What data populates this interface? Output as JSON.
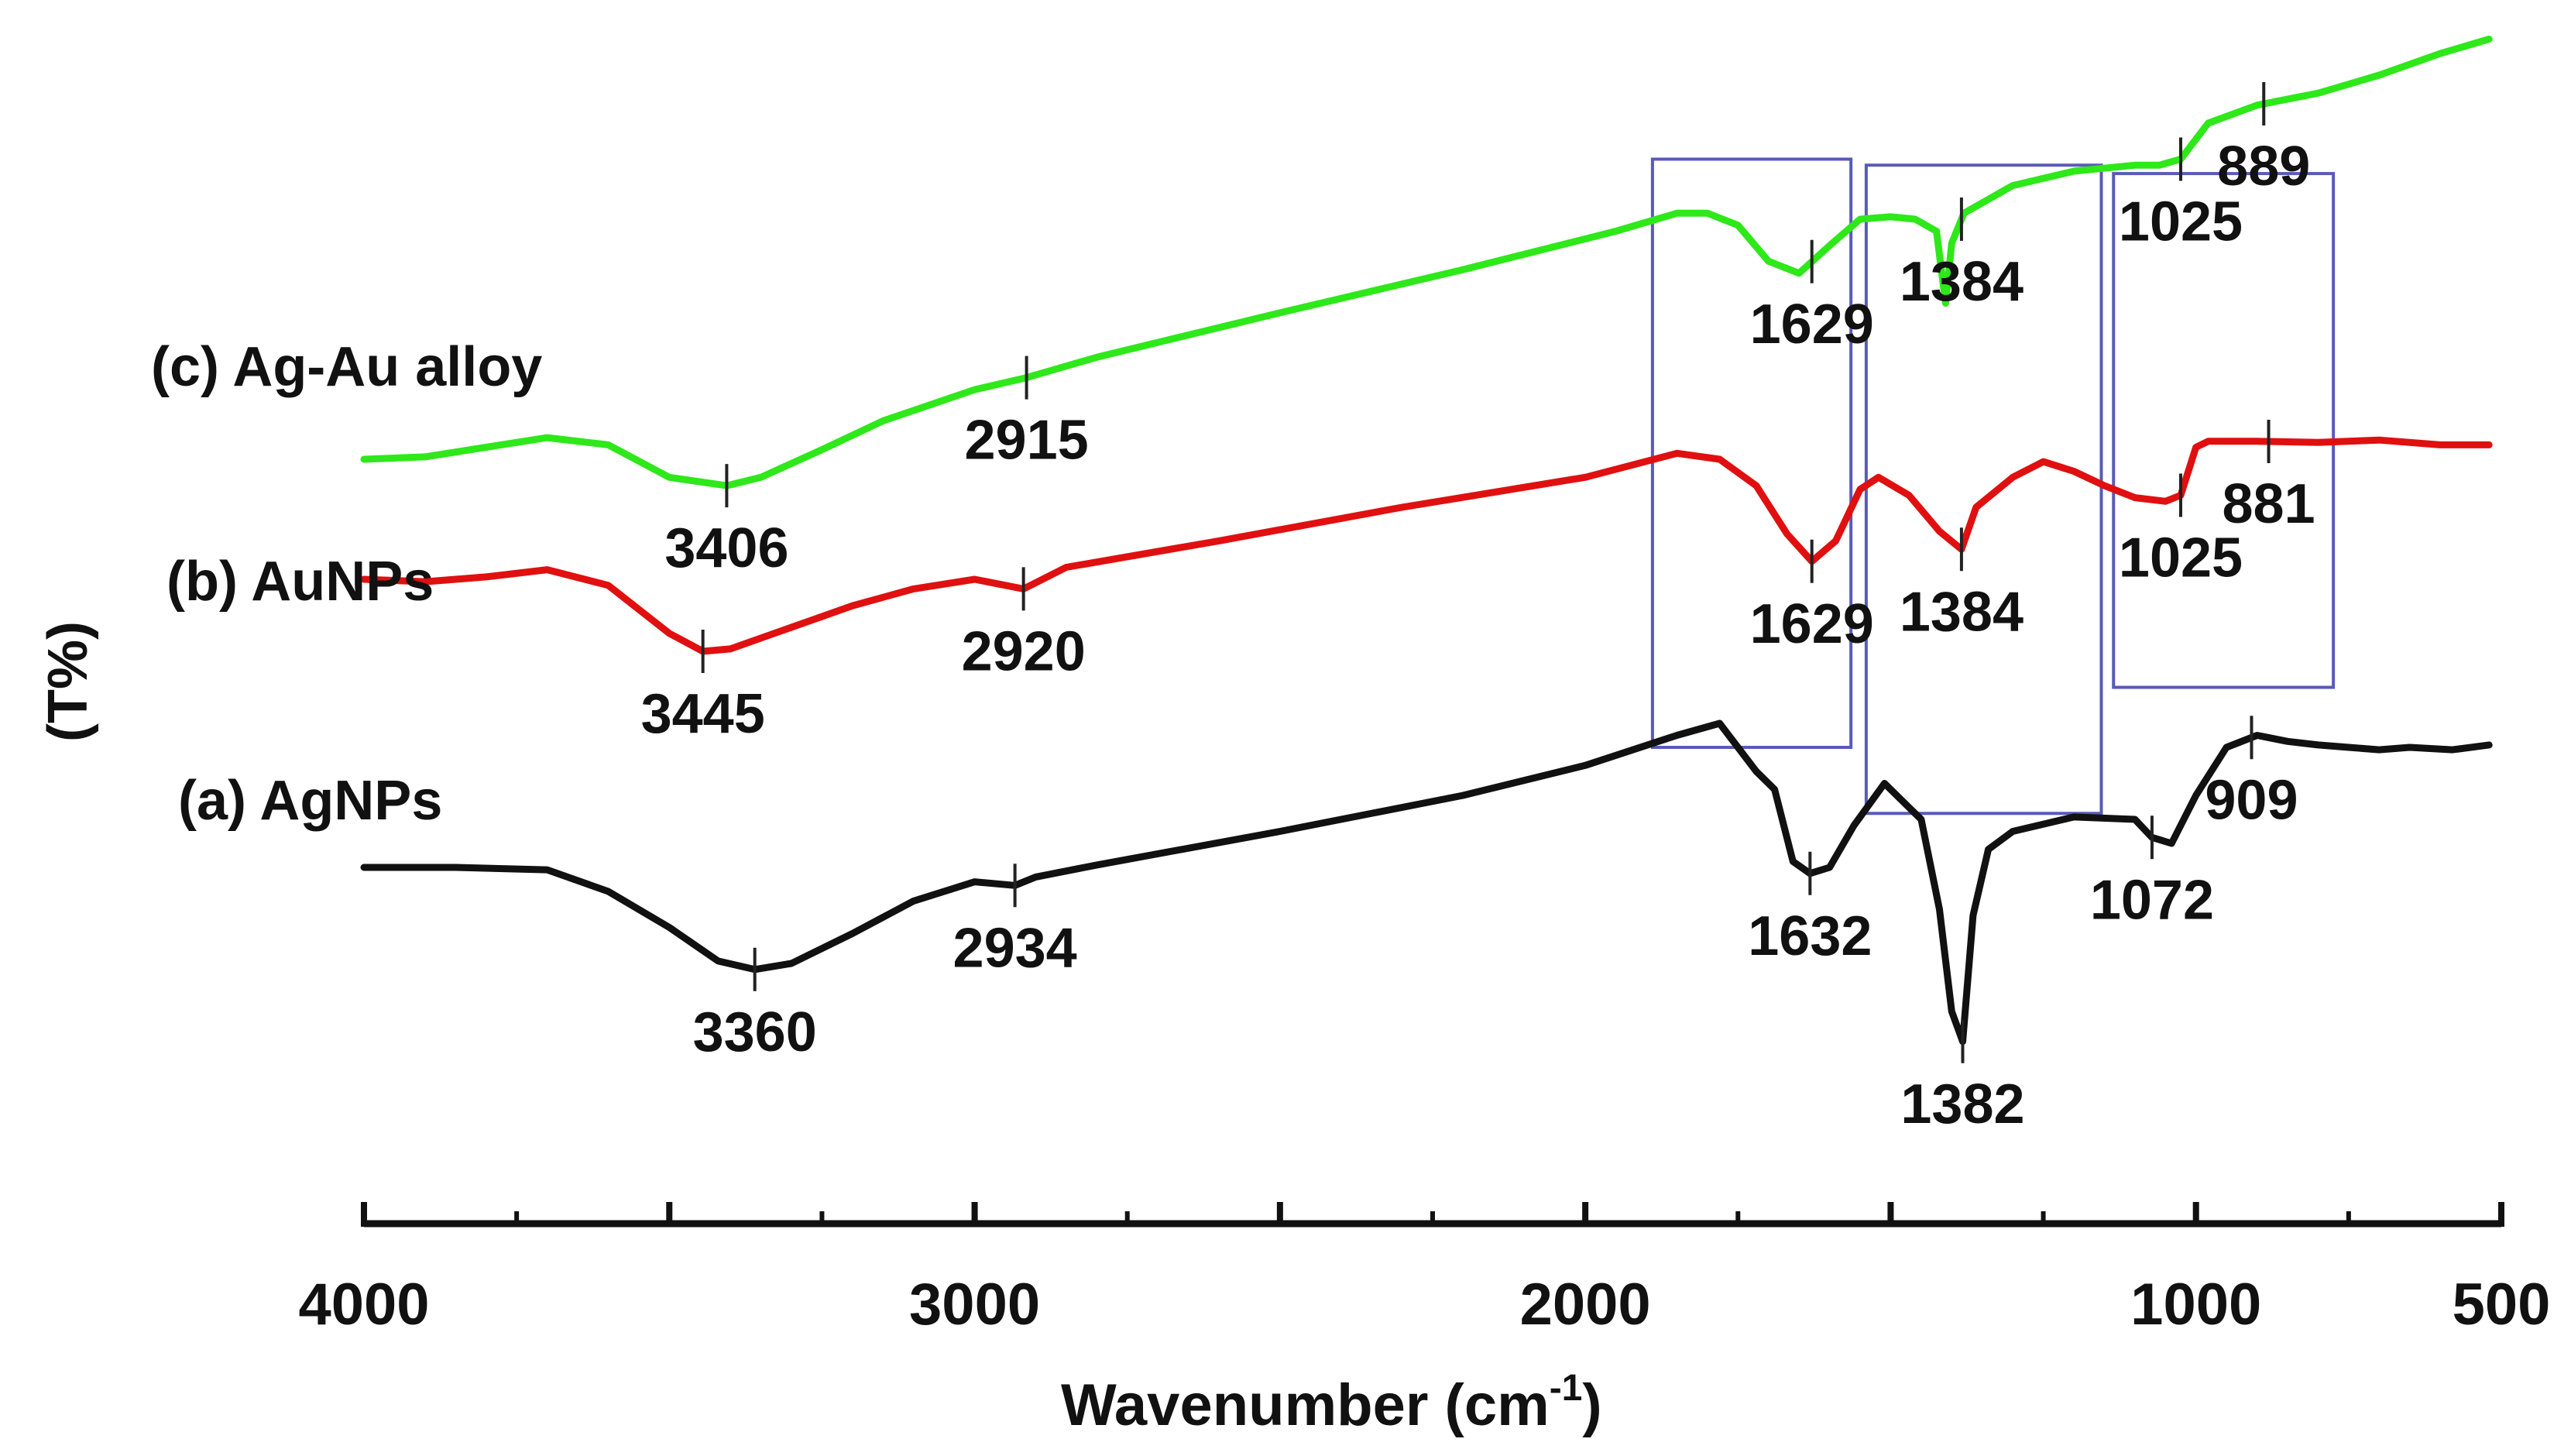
{
  "chart_data": {
    "type": "line",
    "title": "",
    "xlabel": "Wavenumber (cm",
    "xlabel_sup": "-1",
    "xlabel_close": ")",
    "ylabel": "(T%)",
    "xlim": [
      4000,
      500
    ],
    "x_reversed": true,
    "yaxis_values": false,
    "grid": false,
    "x_ticks_major": [
      4000,
      3500,
      3000,
      2500,
      2000,
      1500,
      1000,
      500
    ],
    "x_ticks_minor": [
      3750,
      3250,
      2750,
      2250,
      1750,
      1250,
      750
    ],
    "x_tick_labels": [
      "4000",
      "3000",
      "2000",
      "1000",
      "500"
    ],
    "x_tick_label_values": [
      4000,
      3000,
      2000,
      1000,
      500
    ],
    "series": [
      {
        "name": "(a) AgNPs",
        "color": "#111111",
        "points": [
          [
            4000,
            0
          ],
          [
            3850,
            0
          ],
          [
            3700,
            -2
          ],
          [
            3600,
            -20
          ],
          [
            3500,
            -50
          ],
          [
            3420,
            -78
          ],
          [
            3360,
            -85
          ],
          [
            3300,
            -80
          ],
          [
            3200,
            -55
          ],
          [
            3100,
            -28
          ],
          [
            3000,
            -12
          ],
          [
            2934,
            -15
          ],
          [
            2900,
            -8
          ],
          [
            2800,
            2
          ],
          [
            2500,
            30
          ],
          [
            2200,
            60
          ],
          [
            2000,
            85
          ],
          [
            1850,
            110
          ],
          [
            1780,
            120
          ],
          [
            1720,
            80
          ],
          [
            1690,
            65
          ],
          [
            1660,
            5
          ],
          [
            1632,
            -5
          ],
          [
            1600,
            0
          ],
          [
            1560,
            35
          ],
          [
            1510,
            70
          ],
          [
            1480,
            55
          ],
          [
            1450,
            40
          ],
          [
            1420,
            -35
          ],
          [
            1400,
            -120
          ],
          [
            1382,
            -145
          ],
          [
            1365,
            -40
          ],
          [
            1340,
            15
          ],
          [
            1300,
            30
          ],
          [
            1200,
            42
          ],
          [
            1100,
            40
          ],
          [
            1072,
            25
          ],
          [
            1040,
            20
          ],
          [
            1000,
            60
          ],
          [
            950,
            100
          ],
          [
            900,
            110
          ],
          [
            850,
            105
          ],
          [
            800,
            102
          ],
          [
            750,
            100
          ],
          [
            700,
            98
          ],
          [
            650,
            100
          ],
          [
            580,
            98
          ],
          [
            520,
            102
          ]
        ],
        "peak_labels": [
          "3360",
          "2934",
          "1632",
          "1382",
          "1072",
          "909"
        ],
        "peak_x": [
          3360,
          2934,
          1632,
          1382,
          1072,
          909
        ]
      },
      {
        "name": "(b) AuNPs",
        "color": "#e01010",
        "points": [
          [
            4000,
            240
          ],
          [
            3900,
            238
          ],
          [
            3800,
            242
          ],
          [
            3700,
            248
          ],
          [
            3600,
            235
          ],
          [
            3500,
            195
          ],
          [
            3445,
            180
          ],
          [
            3400,
            182
          ],
          [
            3300,
            200
          ],
          [
            3200,
            218
          ],
          [
            3100,
            232
          ],
          [
            3000,
            240
          ],
          [
            2920,
            232
          ],
          [
            2850,
            250
          ],
          [
            2600,
            272
          ],
          [
            2300,
            300
          ],
          [
            2000,
            325
          ],
          [
            1850,
            345
          ],
          [
            1780,
            340
          ],
          [
            1720,
            318
          ],
          [
            1670,
            278
          ],
          [
            1629,
            255
          ],
          [
            1590,
            272
          ],
          [
            1550,
            315
          ],
          [
            1520,
            325
          ],
          [
            1470,
            310
          ],
          [
            1420,
            280
          ],
          [
            1384,
            265
          ],
          [
            1360,
            300
          ],
          [
            1300,
            325
          ],
          [
            1250,
            338
          ],
          [
            1200,
            330
          ],
          [
            1150,
            318
          ],
          [
            1100,
            308
          ],
          [
            1050,
            305
          ],
          [
            1025,
            310
          ],
          [
            1000,
            350
          ],
          [
            980,
            355
          ],
          [
            900,
            355
          ],
          [
            800,
            354
          ],
          [
            700,
            356
          ],
          [
            600,
            352
          ],
          [
            520,
            352
          ]
        ],
        "peak_labels": [
          "3445",
          "2920",
          "1629",
          "1384",
          "1025",
          "881"
        ],
        "peak_x": [
          3445,
          2920,
          1629,
          1384,
          1025,
          881
        ]
      },
      {
        "name": "(c) Ag-Au alloy",
        "color": "#2ee81a",
        "points": [
          [
            4000,
            340
          ],
          [
            3900,
            342
          ],
          [
            3800,
            350
          ],
          [
            3700,
            358
          ],
          [
            3600,
            352
          ],
          [
            3500,
            325
          ],
          [
            3406,
            318
          ],
          [
            3350,
            325
          ],
          [
            3250,
            348
          ],
          [
            3150,
            372
          ],
          [
            3000,
            398
          ],
          [
            2915,
            408
          ],
          [
            2800,
            425
          ],
          [
            2500,
            462
          ],
          [
            2200,
            498
          ],
          [
            1950,
            530
          ],
          [
            1850,
            545
          ],
          [
            1800,
            545
          ],
          [
            1750,
            535
          ],
          [
            1700,
            505
          ],
          [
            1650,
            495
          ],
          [
            1600,
            518
          ],
          [
            1550,
            540
          ],
          [
            1500,
            542
          ],
          [
            1460,
            540
          ],
          [
            1425,
            530
          ],
          [
            1410,
            470
          ],
          [
            1400,
            520
          ],
          [
            1380,
            545
          ],
          [
            1300,
            568
          ],
          [
            1200,
            580
          ],
          [
            1100,
            585
          ],
          [
            1060,
            585
          ],
          [
            1025,
            590
          ],
          [
            980,
            620
          ],
          [
            900,
            635
          ],
          [
            800,
            645
          ],
          [
            700,
            660
          ],
          [
            600,
            678
          ],
          [
            520,
            690
          ]
        ],
        "peak_labels": [
          "3406",
          "2915",
          "1629",
          "1384",
          "1025",
          "889"
        ],
        "peak_x": [
          3406,
          2915,
          1629,
          1384,
          1025,
          889
        ]
      }
    ],
    "highlight_boxes": [
      {
        "x_from": 1890,
        "x_to": 1565,
        "y_from": 220,
        "y_to": 590
      },
      {
        "x_from": 1540,
        "x_to": 1155,
        "y_from": 165,
        "y_to": 585
      },
      {
        "x_from": 1135,
        "x_to": 775,
        "y_from": 270,
        "y_to": 578
      }
    ]
  }
}
